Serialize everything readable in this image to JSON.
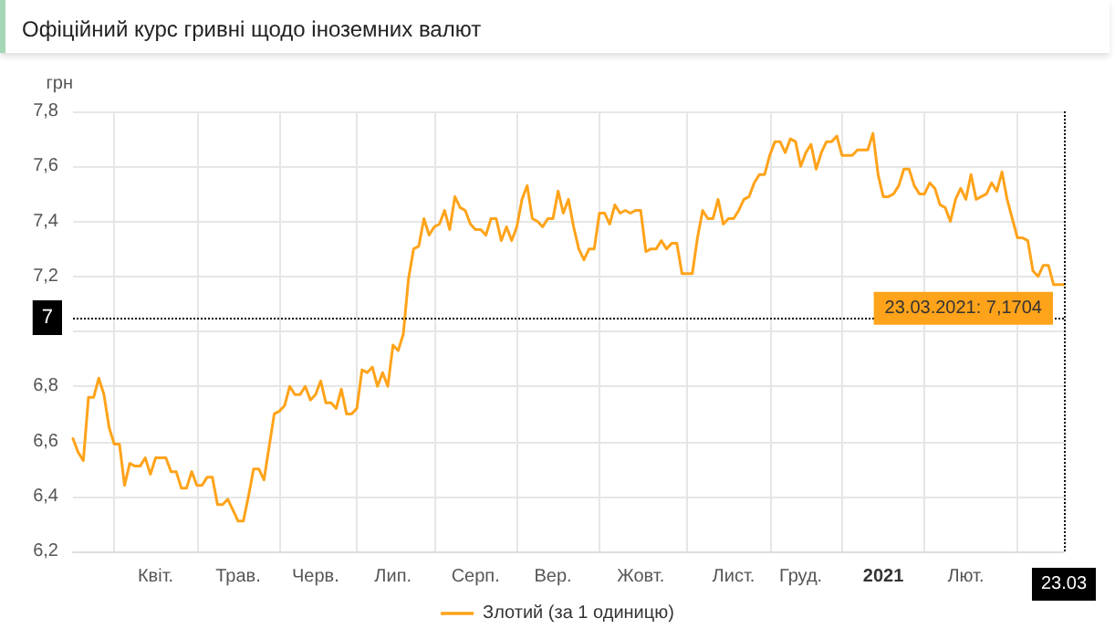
{
  "chart_data": {
    "type": "line",
    "title": "Офіційний курс гривні щодо іноземних валют",
    "ylabel": "грн",
    "categories": [
      null,
      null,
      null,
      null,
      null,
      null,
      null,
      null,
      null,
      null,
      null,
      null,
      null,
      null,
      null,
      null,
      "Квіт.",
      null,
      null,
      null,
      null,
      null,
      null,
      null,
      null,
      null,
      null,
      null,
      null,
      null,
      null,
      null,
      "Трав.",
      null,
      null,
      null,
      null,
      null,
      null,
      null,
      null,
      null,
      null,
      null,
      null,
      null,
      null,
      "Черв.",
      null,
      null,
      null,
      null,
      null,
      null,
      null,
      null,
      null,
      null,
      null,
      null,
      null,
      null,
      "Лип.",
      null,
      null,
      null,
      null,
      null,
      null,
      null,
      null,
      null,
      null,
      null,
      null,
      null,
      null,
      null,
      "Серп.",
      null,
      null,
      null,
      null,
      null,
      null,
      null,
      null,
      null,
      null,
      null,
      null,
      null,
      null,
      "Вер.",
      null,
      null,
      null,
      null,
      null,
      null,
      null,
      null,
      null,
      null,
      null,
      null,
      null,
      null,
      null,
      null,
      "Жовт.",
      null,
      null,
      null,
      null,
      null,
      null,
      null,
      null,
      null,
      null,
      null,
      null,
      null,
      null,
      null,
      null,
      null,
      "Лист.",
      null,
      null,
      null,
      null,
      null,
      null,
      null,
      null,
      null,
      null,
      null,
      null,
      "Груд.",
      null,
      null,
      null,
      null,
      null,
      null,
      null,
      null,
      null,
      null,
      null,
      null,
      null,
      null,
      null,
      "2021",
      null,
      null,
      null,
      null,
      null,
      null,
      null,
      null,
      null,
      null,
      null,
      null,
      null,
      null,
      null,
      "Лют.",
      null,
      null,
      null,
      null,
      null,
      null,
      null,
      null,
      null,
      null,
      null,
      null,
      null,
      null,
      null,
      null,
      null,
      null,
      "23.03"
    ],
    "series": [
      {
        "name": "Злотий (за 1 одиницю)",
        "color": "#ffa31a",
        "values": [
          6.61,
          6.56,
          6.53,
          6.76,
          6.76,
          6.83,
          6.77,
          6.65,
          6.59,
          6.59,
          6.44,
          6.52,
          6.51,
          6.51,
          6.54,
          6.48,
          6.54,
          6.54,
          6.54,
          6.49,
          6.49,
          6.43,
          6.43,
          6.49,
          6.44,
          6.44,
          6.47,
          6.47,
          6.37,
          6.37,
          6.39,
          6.35,
          6.31,
          6.31,
          6.4,
          6.5,
          6.5,
          6.46,
          6.58,
          6.7,
          6.71,
          6.73,
          6.8,
          6.77,
          6.77,
          6.8,
          6.75,
          6.77,
          6.82,
          6.74,
          6.74,
          6.72,
          6.79,
          6.7,
          6.7,
          6.72,
          6.86,
          6.85,
          6.87,
          6.8,
          6.85,
          6.8,
          6.95,
          6.93,
          6.99,
          7.19,
          7.3,
          7.31,
          7.41,
          7.35,
          7.38,
          7.39,
          7.44,
          7.37,
          7.49,
          7.45,
          7.44,
          7.39,
          7.37,
          7.37,
          7.35,
          7.41,
          7.41,
          7.33,
          7.38,
          7.33,
          7.38,
          7.48,
          7.53,
          7.41,
          7.4,
          7.38,
          7.41,
          7.41,
          7.51,
          7.43,
          7.48,
          7.38,
          7.3,
          7.26,
          7.3,
          7.3,
          7.43,
          7.43,
          7.39,
          7.46,
          7.43,
          7.44,
          7.43,
          7.44,
          7.44,
          7.29,
          7.3,
          7.3,
          7.33,
          7.3,
          7.32,
          7.32,
          7.21,
          7.21,
          7.21,
          7.34,
          7.44,
          7.41,
          7.41,
          7.48,
          7.39,
          7.41,
          7.41,
          7.44,
          7.48,
          7.49,
          7.54,
          7.57,
          7.57,
          7.64,
          7.69,
          7.69,
          7.65,
          7.7,
          7.69,
          7.6,
          7.65,
          7.68,
          7.59,
          7.65,
          7.69,
          7.69,
          7.71,
          7.64,
          7.64,
          7.64,
          7.66,
          7.66,
          7.66,
          7.72,
          7.57,
          7.49,
          7.49,
          7.5,
          7.53,
          7.59,
          7.59,
          7.53,
          7.5,
          7.5,
          7.54,
          7.52,
          7.46,
          7.45,
          7.4,
          7.48,
          7.52,
          7.48,
          7.57,
          7.48,
          7.49,
          7.5,
          7.54,
          7.51,
          7.58,
          7.48,
          7.41,
          7.34,
          7.34,
          7.33,
          7.22,
          7.2,
          7.24,
          7.24,
          7.17,
          7.17,
          7.1704
        ]
      }
    ],
    "ylim": [
      6.2,
      7.8
    ],
    "yticks": [
      {
        "value": 6.2,
        "label": "6,2"
      },
      {
        "value": 6.4,
        "label": "6,4"
      },
      {
        "value": 6.6,
        "label": "6,6"
      },
      {
        "value": 6.8,
        "label": "6,8"
      },
      {
        "value": 7,
        "label": null
      },
      {
        "value": 7.2,
        "label": "7,2"
      },
      {
        "value": 7.4,
        "label": "7,4"
      },
      {
        "value": 7.6,
        "label": "7,6"
      },
      {
        "value": 7.8,
        "label": "7,8"
      }
    ],
    "ref_lines": [
      {
        "axis": "y",
        "value": 7.05,
        "label": "7",
        "color": "#000000",
        "line_style": "dotted"
      },
      {
        "axis": "x",
        "value": "23.03",
        "color": "#000000",
        "line_style": "dotted"
      }
    ],
    "annotations": [
      {
        "text": "23.03.2021: 7,1704",
        "x": "23.03",
        "y": 7.1704
      }
    ],
    "grid": true,
    "legend": "bottom",
    "marker": "none",
    "line_style": "solid"
  }
}
